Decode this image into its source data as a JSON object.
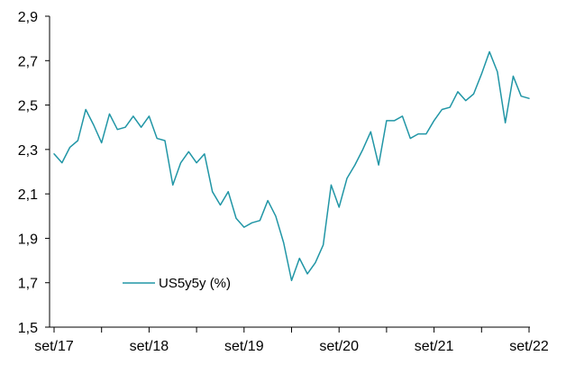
{
  "chart_data": {
    "type": "line",
    "title": "",
    "xlabel": "",
    "ylabel": "",
    "x_tick_labels": [
      "set/17",
      "set/18",
      "set/19",
      "set/20",
      "set/21",
      "set/22"
    ],
    "y_tick_labels": [
      "1,5",
      "1,7",
      "1,9",
      "2,1",
      "2,3",
      "2,5",
      "2,7",
      "2,9"
    ],
    "ylim": [
      1.5,
      2.9
    ],
    "grid": false,
    "legend_position": "bottom-left",
    "line_color": "#2196A6",
    "series": [
      {
        "name": "US5y5y (%)",
        "x": [
          "set/17",
          "out/17",
          "nov/17",
          "dez/17",
          "jan/18",
          "fev/18",
          "mar/18",
          "abr/18",
          "mai/18",
          "jun/18",
          "jul/18",
          "ago/18",
          "set/18",
          "out/18",
          "nov/18",
          "dez/18",
          "jan/19",
          "fev/19",
          "mar/19",
          "abr/19",
          "mai/19",
          "jun/19",
          "jul/19",
          "ago/19",
          "set/19",
          "out/19",
          "nov/19",
          "dez/19",
          "jan/20",
          "fev/20",
          "mar/20",
          "abr/20",
          "mai/20",
          "jun/20",
          "jul/20",
          "ago/20",
          "set/20",
          "out/20",
          "nov/20",
          "dez/20",
          "jan/21",
          "fev/21",
          "mar/21",
          "abr/21",
          "mai/21",
          "jun/21",
          "jul/21",
          "ago/21",
          "set/21",
          "out/21",
          "nov/21",
          "dez/21",
          "jan/22",
          "fev/22",
          "mar/22",
          "abr/22",
          "mai/22",
          "jun/22",
          "jul/22",
          "ago/22",
          "set/22"
        ],
        "values": [
          2.28,
          2.24,
          2.31,
          2.34,
          2.48,
          2.41,
          2.33,
          2.46,
          2.39,
          2.4,
          2.45,
          2.4,
          2.45,
          2.35,
          2.34,
          2.14,
          2.24,
          2.29,
          2.24,
          2.28,
          2.11,
          2.05,
          2.11,
          1.99,
          1.95,
          1.97,
          1.98,
          2.07,
          2.0,
          1.88,
          1.71,
          1.81,
          1.74,
          1.79,
          1.87,
          2.14,
          2.04,
          2.17,
          2.23,
          2.3,
          2.38,
          2.23,
          2.43,
          2.43,
          2.45,
          2.35,
          2.37,
          2.37,
          2.43,
          2.48,
          2.49,
          2.56,
          2.52,
          2.55,
          2.64,
          2.74,
          2.65,
          2.42,
          2.63,
          2.54,
          2.53
        ]
      }
    ]
  }
}
